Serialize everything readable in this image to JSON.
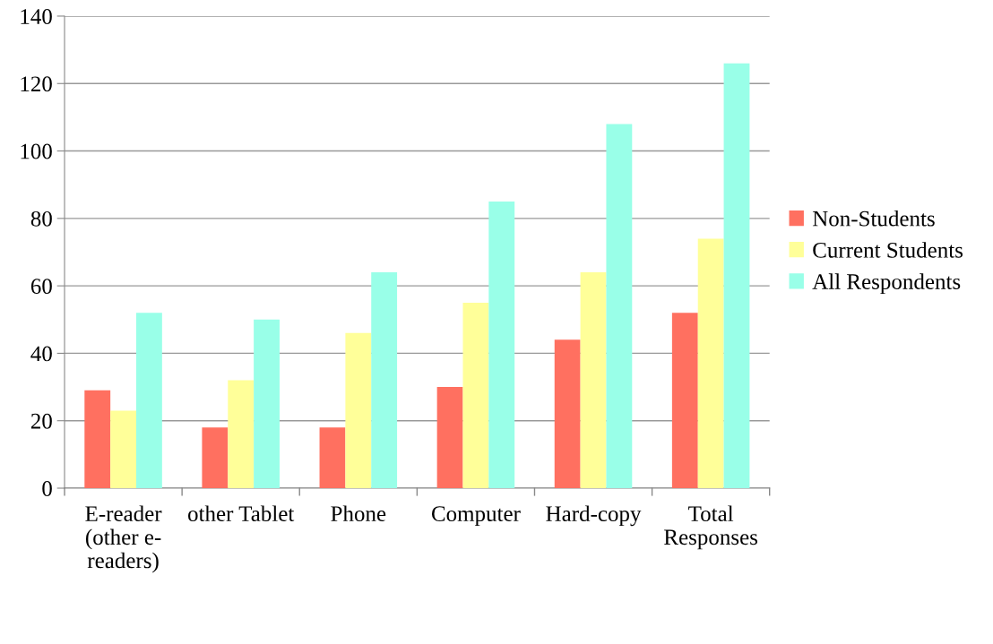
{
  "chart_data": {
    "type": "bar",
    "categories": [
      "E-reader\n(other e-\nreaders)",
      "other Tablet",
      "Phone",
      "Computer",
      "Hard-copy",
      "Total\nResponses"
    ],
    "series": [
      {
        "name": "Non-Students",
        "color": "#ff7060",
        "values": [
          29,
          18,
          18,
          30,
          44,
          52
        ]
      },
      {
        "name": "Current Students",
        "color": "#ffff99",
        "values": [
          23,
          32,
          46,
          55,
          64,
          74
        ]
      },
      {
        "name": "All Respondents",
        "color": "#99ffe8",
        "values": [
          52,
          50,
          64,
          85,
          108,
          126
        ]
      }
    ],
    "ylim": [
      0,
      140
    ],
    "yticks": [
      0,
      20,
      40,
      60,
      80,
      100,
      120,
      140
    ],
    "grid": "y",
    "legend": "right"
  }
}
